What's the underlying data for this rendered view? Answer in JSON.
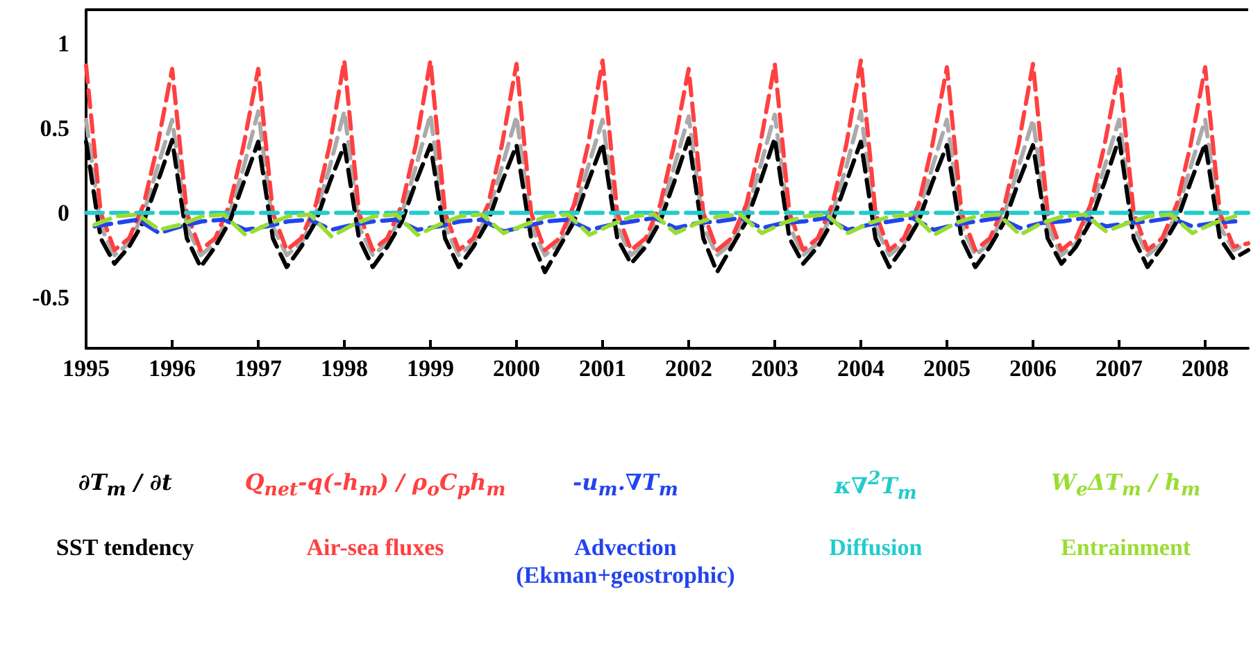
{
  "chart_data": {
    "type": "line",
    "xlim": [
      1995,
      2008.5
    ],
    "xticks": [
      1995,
      1996,
      1997,
      1998,
      1999,
      2000,
      2001,
      2002,
      2003,
      2004,
      2005,
      2006,
      2007,
      2008
    ],
    "ylim": [
      -0.8,
      1.2
    ],
    "yticks": [
      -0.5,
      0,
      0.5,
      1
    ],
    "grid": false,
    "legend": "bottom",
    "marker": "none",
    "line_style": "dashed",
    "annotations": [
      "∂T$_{m}$ / ∂t",
      "Q$_{net}$-q(-h$_{m}$) / ρ$_{o}$C$_{p}$h$_{m}$",
      "-u$_{m}$.∇T$_{m}$",
      "κ∇$^{2}$T$_{m}$",
      "W$_{e}$ΔT$_{m}$ / h$_{m}$"
    ],
    "x": [
      1995,
      1995.17,
      1995.33,
      1995.5,
      1995.67,
      1995.83,
      1996,
      1996.17,
      1996.33,
      1996.5,
      1996.67,
      1996.83,
      1997,
      1997.17,
      1997.33,
      1997.5,
      1997.67,
      1997.83,
      1998,
      1998.17,
      1998.33,
      1998.5,
      1998.67,
      1998.83,
      1999,
      1999.17,
      1999.33,
      1999.5,
      1999.67,
      1999.83,
      2000,
      2000.17,
      2000.33,
      2000.5,
      2000.67,
      2000.83,
      2001,
      2001.17,
      2001.33,
      2001.5,
      2001.67,
      2001.83,
      2002,
      2002.17,
      2002.33,
      2002.5,
      2002.67,
      2002.83,
      2003,
      2003.17,
      2003.33,
      2003.5,
      2003.67,
      2003.83,
      2004,
      2004.17,
      2004.33,
      2004.5,
      2004.67,
      2004.83,
      2005,
      2005.17,
      2005.33,
      2005.5,
      2005.67,
      2005.83,
      2006,
      2006.17,
      2006.33,
      2006.5,
      2006.67,
      2006.83,
      2007,
      2007.17,
      2007.33,
      2007.5,
      2007.67,
      2007.83,
      2008,
      2008.17,
      2008.33,
      2008.5
    ],
    "series": [
      {
        "name": "SST tendency",
        "color": "#000000",
        "values": [
          0.42,
          -0.15,
          -0.3,
          -0.2,
          -0.05,
          0.18,
          0.43,
          -0.15,
          -0.32,
          -0.2,
          -0.05,
          0.18,
          0.42,
          -0.15,
          -0.32,
          -0.2,
          -0.05,
          0.18,
          0.4,
          -0.15,
          -0.32,
          -0.2,
          -0.05,
          0.18,
          0.4,
          -0.15,
          -0.32,
          -0.2,
          -0.05,
          0.18,
          0.4,
          -0.15,
          -0.35,
          -0.2,
          -0.05,
          0.18,
          0.41,
          -0.15,
          -0.3,
          -0.2,
          -0.05,
          0.18,
          0.44,
          -0.15,
          -0.35,
          -0.2,
          -0.05,
          0.18,
          0.44,
          -0.15,
          -0.3,
          -0.2,
          -0.05,
          0.18,
          0.42,
          -0.15,
          -0.32,
          -0.2,
          -0.05,
          0.18,
          0.4,
          -0.15,
          -0.32,
          -0.2,
          -0.05,
          0.18,
          0.4,
          -0.15,
          -0.3,
          -0.2,
          -0.05,
          0.18,
          0.44,
          -0.15,
          -0.32,
          -0.2,
          -0.05,
          0.18,
          0.41,
          -0.15,
          -0.27,
          -0.22
        ]
      },
      {
        "name": "Air-sea fluxes",
        "color": "#ff4040",
        "values": [
          0.87,
          0.0,
          -0.22,
          -0.15,
          0.05,
          0.4,
          0.85,
          0.0,
          -0.22,
          -0.15,
          0.05,
          0.4,
          0.85,
          0.0,
          -0.22,
          -0.15,
          0.05,
          0.4,
          0.9,
          0.0,
          -0.22,
          -0.15,
          0.05,
          0.4,
          0.9,
          0.0,
          -0.22,
          -0.15,
          0.05,
          0.4,
          0.88,
          0.0,
          -0.22,
          -0.15,
          0.05,
          0.4,
          0.9,
          0.0,
          -0.22,
          -0.15,
          0.05,
          0.4,
          0.85,
          0.0,
          -0.22,
          -0.15,
          0.05,
          0.4,
          0.88,
          0.0,
          -0.22,
          -0.15,
          0.05,
          0.4,
          0.9,
          0.0,
          -0.22,
          -0.15,
          0.05,
          0.4,
          0.86,
          0.0,
          -0.22,
          -0.15,
          0.05,
          0.4,
          0.88,
          0.0,
          -0.22,
          -0.15,
          0.05,
          0.4,
          0.85,
          0.0,
          -0.22,
          -0.15,
          0.05,
          0.4,
          0.86,
          0.0,
          -0.2,
          -0.18
        ]
      },
      {
        "name": "Advection (Ekman+geostrophic)",
        "color": "#2244ee",
        "x": [
          1995.1,
          1995.35,
          1995.6,
          1995.85,
          1996.1,
          1996.35,
          1996.6,
          1996.85,
          1997.1,
          1997.35,
          1997.6,
          1997.85,
          1998.1,
          1998.35,
          1998.6,
          1998.85,
          1999.1,
          1999.35,
          1999.6,
          1999.85,
          2000.1,
          2000.35,
          2000.6,
          2000.85,
          2001.1,
          2001.35,
          2001.6,
          2001.85,
          2002.1,
          2002.35,
          2002.6,
          2002.85,
          2003.1,
          2003.35,
          2003.6,
          2003.85,
          2004.1,
          2004.35,
          2004.6,
          2004.85,
          2005.1,
          2005.35,
          2005.6,
          2005.85,
          2006.1,
          2006.35,
          2006.6,
          2006.85,
          2007.1,
          2007.35,
          2007.6,
          2007.85,
          2008.1,
          2008.35
        ],
        "values": [
          -0.08,
          -0.06,
          -0.04,
          -0.12,
          -0.08,
          -0.05,
          -0.04,
          -0.1,
          -0.08,
          -0.05,
          -0.04,
          -0.1,
          -0.07,
          -0.05,
          -0.04,
          -0.1,
          -0.08,
          -0.05,
          -0.04,
          -0.11,
          -0.08,
          -0.05,
          -0.04,
          -0.1,
          -0.07,
          -0.05,
          -0.03,
          -0.09,
          -0.06,
          -0.05,
          -0.03,
          -0.09,
          -0.06,
          -0.05,
          -0.03,
          -0.1,
          -0.07,
          -0.05,
          -0.03,
          -0.1,
          -0.07,
          -0.05,
          -0.03,
          -0.09,
          -0.06,
          -0.05,
          -0.03,
          -0.08,
          -0.06,
          -0.05,
          -0.03,
          -0.08,
          -0.06,
          -0.05
        ]
      },
      {
        "name": "Diffusion",
        "color": "#22cccc",
        "x": [
          1995,
          2008.5
        ],
        "values": [
          0,
          0
        ]
      },
      {
        "name": "Entrainment",
        "color": "#99dd33",
        "x": [
          1995.1,
          1995.35,
          1995.6,
          1995.85,
          1996.1,
          1996.35,
          1996.6,
          1996.85,
          1997.1,
          1997.35,
          1997.6,
          1997.85,
          1998.1,
          1998.35,
          1998.6,
          1998.85,
          1999.1,
          1999.35,
          1999.6,
          1999.85,
          2000.1,
          2000.35,
          2000.6,
          2000.85,
          2001.1,
          2001.35,
          2001.6,
          2001.85,
          2002.1,
          2002.35,
          2002.6,
          2002.85,
          2003.1,
          2003.35,
          2003.6,
          2003.85,
          2004.1,
          2004.35,
          2004.6,
          2004.85,
          2005.1,
          2005.35,
          2005.6,
          2005.85,
          2006.1,
          2006.35,
          2006.6,
          2006.85,
          2007.1,
          2007.35,
          2007.6,
          2007.85,
          2008.1,
          2008.35
        ],
        "values": [
          -0.07,
          -0.02,
          -0.01,
          -0.1,
          -0.07,
          -0.02,
          -0.01,
          -0.13,
          -0.07,
          -0.02,
          -0.01,
          -0.14,
          -0.07,
          -0.02,
          -0.01,
          -0.13,
          -0.07,
          -0.02,
          -0.01,
          -0.12,
          -0.07,
          -0.02,
          -0.01,
          -0.13,
          -0.07,
          -0.02,
          -0.01,
          -0.12,
          -0.06,
          -0.02,
          -0.01,
          -0.12,
          -0.06,
          -0.02,
          -0.01,
          -0.12,
          -0.06,
          -0.02,
          -0.01,
          -0.13,
          -0.06,
          -0.02,
          -0.01,
          -0.13,
          -0.06,
          -0.02,
          -0.01,
          -0.11,
          -0.06,
          -0.02,
          -0.01,
          -0.12,
          -0.06,
          -0.02
        ]
      },
      {
        "color": "#aaaaaa",
        "values": [
          0.55,
          -0.08,
          -0.25,
          -0.18,
          0.0,
          0.27,
          0.55,
          -0.08,
          -0.25,
          -0.18,
          0.0,
          0.27,
          0.6,
          -0.08,
          -0.25,
          -0.18,
          0.0,
          0.27,
          0.6,
          -0.08,
          -0.25,
          -0.18,
          0.0,
          0.27,
          0.58,
          -0.08,
          -0.25,
          -0.18,
          0.0,
          0.27,
          0.57,
          -0.08,
          -0.25,
          -0.18,
          0.0,
          0.27,
          0.55,
          -0.08,
          -0.25,
          -0.18,
          0.0,
          0.27,
          0.57,
          -0.08,
          -0.25,
          -0.18,
          0.0,
          0.27,
          0.58,
          -0.08,
          -0.25,
          -0.18,
          0.0,
          0.27,
          0.6,
          -0.08,
          -0.25,
          -0.18,
          0.0,
          0.27,
          0.55,
          -0.08,
          -0.25,
          -0.18,
          0.0,
          0.27,
          0.55,
          -0.08,
          -0.25,
          -0.18,
          0.0,
          0.27,
          0.55,
          -0.08,
          -0.25,
          -0.18,
          0.0,
          0.27,
          0.55,
          -0.08,
          -0.22,
          -0.18
        ]
      }
    ]
  }
}
